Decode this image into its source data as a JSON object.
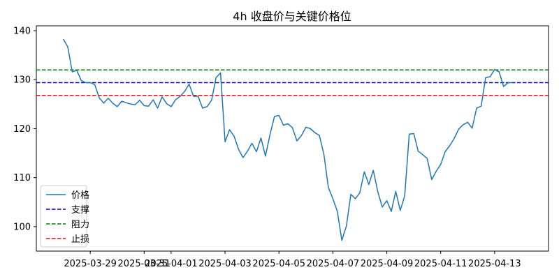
{
  "chart_data": {
    "type": "line",
    "title": "4h 收盘价与关键价格位",
    "xlabel": "",
    "ylabel": "",
    "xlim": [
      "2025-03-27T00:00",
      "2025-04-15T00:00"
    ],
    "ylim": [
      95,
      141
    ],
    "x_ticks": [
      "2025-03-29",
      "2025-03-31",
      "2025-04-01",
      "2025-04-03",
      "2025-04-05",
      "2025-04-07",
      "2025-04-09",
      "2025-04-11",
      "2025-04-13"
    ],
    "y_ticks": [
      100,
      110,
      120,
      130,
      140
    ],
    "grid": false,
    "legend_position": "bottom-left",
    "series": [
      {
        "name": "价格",
        "color": "#1f77b4",
        "style": "solid",
        "x": [
          "2025-03-28T00:00",
          "2025-03-28T04:00",
          "2025-03-28T08:00",
          "2025-03-28T12:00",
          "2025-03-28T16:00",
          "2025-03-28T20:00",
          "2025-03-29T00:00",
          "2025-03-29T04:00",
          "2025-03-29T08:00",
          "2025-03-29T12:00",
          "2025-03-29T16:00",
          "2025-03-29T20:00",
          "2025-03-30T00:00",
          "2025-03-30T04:00",
          "2025-03-30T08:00",
          "2025-03-30T12:00",
          "2025-03-30T16:00",
          "2025-03-30T20:00",
          "2025-03-31T00:00",
          "2025-03-31T04:00",
          "2025-03-31T08:00",
          "2025-03-31T12:00",
          "2025-03-31T16:00",
          "2025-03-31T20:00",
          "2025-04-01T00:00",
          "2025-04-01T04:00",
          "2025-04-01T08:00",
          "2025-04-01T12:00",
          "2025-04-01T16:00",
          "2025-04-01T20:00",
          "2025-04-02T00:00",
          "2025-04-02T04:00",
          "2025-04-02T08:00",
          "2025-04-02T12:00",
          "2025-04-02T16:00",
          "2025-04-02T20:00",
          "2025-04-03T00:00",
          "2025-04-03T04:00",
          "2025-04-03T08:00",
          "2025-04-03T12:00",
          "2025-04-03T16:00",
          "2025-04-03T20:00",
          "2025-04-04T00:00",
          "2025-04-04T04:00",
          "2025-04-04T08:00",
          "2025-04-04T12:00",
          "2025-04-04T16:00",
          "2025-04-04T20:00",
          "2025-04-05T00:00",
          "2025-04-05T04:00",
          "2025-04-05T08:00",
          "2025-04-05T12:00",
          "2025-04-05T16:00",
          "2025-04-05T20:00",
          "2025-04-06T00:00",
          "2025-04-06T04:00",
          "2025-04-06T08:00",
          "2025-04-06T12:00",
          "2025-04-06T16:00",
          "2025-04-06T20:00",
          "2025-04-07T00:00",
          "2025-04-07T04:00",
          "2025-04-07T08:00",
          "2025-04-07T12:00",
          "2025-04-07T16:00",
          "2025-04-07T20:00",
          "2025-04-08T00:00",
          "2025-04-08T04:00",
          "2025-04-08T08:00",
          "2025-04-08T12:00",
          "2025-04-08T16:00",
          "2025-04-08T20:00",
          "2025-04-09T00:00",
          "2025-04-09T04:00",
          "2025-04-09T08:00",
          "2025-04-09T12:00",
          "2025-04-09T16:00",
          "2025-04-09T20:00",
          "2025-04-10T00:00",
          "2025-04-10T04:00",
          "2025-04-10T08:00",
          "2025-04-10T12:00",
          "2025-04-10T16:00",
          "2025-04-10T20:00",
          "2025-04-11T00:00",
          "2025-04-11T04:00",
          "2025-04-11T08:00",
          "2025-04-11T12:00",
          "2025-04-11T16:00",
          "2025-04-11T20:00",
          "2025-04-12T00:00",
          "2025-04-12T04:00",
          "2025-04-12T08:00",
          "2025-04-12T12:00",
          "2025-04-12T16:00",
          "2025-04-12T20:00",
          "2025-04-13T00:00",
          "2025-04-13T04:00",
          "2025-04-13T08:00",
          "2025-04-13T12:00",
          "2025-04-13T16:00"
        ],
        "y": [
          138.3,
          136.7,
          131.6,
          131.9,
          129.8,
          129.4,
          129.4,
          129.0,
          126.3,
          125.2,
          126.2,
          125.2,
          124.5,
          125.6,
          125.3,
          125.0,
          124.9,
          125.8,
          124.7,
          124.6,
          125.9,
          124.2,
          126.5,
          125.1,
          124.5,
          125.9,
          126.6,
          127.6,
          129.1,
          126.6,
          126.6,
          124.2,
          124.5,
          125.8,
          130.4,
          131.4,
          117.3,
          119.8,
          118.5,
          115.8,
          114.1,
          115.4,
          117.0,
          115.3,
          118.1,
          114.4,
          118.8,
          122.5,
          122.7,
          120.7,
          121.0,
          120.2,
          117.5,
          118.6,
          120.3,
          120.0,
          119.2,
          118.6,
          114.8,
          108.0,
          105.7,
          103.1,
          97.2,
          100.1,
          106.6,
          105.7,
          106.9,
          111.2,
          108.6,
          111.5,
          107.1,
          104.0,
          105.3,
          103.1,
          107.2,
          103.3,
          106.3,
          118.9,
          119.0,
          115.4,
          114.7,
          113.9,
          109.6,
          111.3,
          112.7,
          115.3,
          116.5,
          118.0,
          119.9,
          120.8,
          121.3,
          120.1,
          124.2,
          124.6,
          130.4,
          130.6,
          132.1,
          131.6,
          128.6,
          129.4,
          129.4
        ]
      },
      {
        "name": "支撑",
        "color": "#0000cc",
        "style": "dashed",
        "value": 129.4
      },
      {
        "name": "阻力",
        "color": "#008000",
        "style": "dashed",
        "value": 132.0
      },
      {
        "name": "止损",
        "color": "#ff0000",
        "style": "dashed",
        "value": 126.8
      }
    ]
  }
}
